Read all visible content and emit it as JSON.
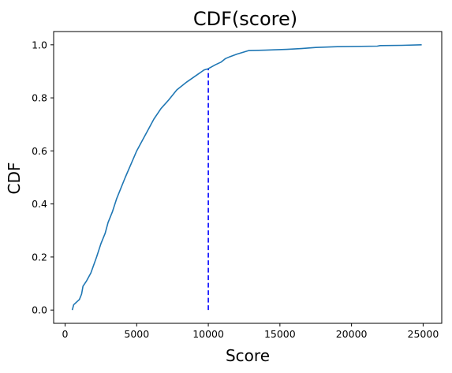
{
  "chart_data": {
    "type": "line",
    "title": "CDF(score)",
    "xlabel": "Score",
    "ylabel": "CDF",
    "xlim": [
      -800,
      26300
    ],
    "ylim": [
      -0.05,
      1.05
    ],
    "xticks": [
      0,
      5000,
      10000,
      15000,
      20000,
      25000
    ],
    "xtick_labels": [
      "0",
      "5000",
      "10000",
      "15000",
      "20000",
      "25000"
    ],
    "yticks": [
      0.0,
      0.2,
      0.4,
      0.6,
      0.8,
      1.0
    ],
    "ytick_labels": [
      "0.0",
      "0.2",
      "0.4",
      "0.6",
      "0.8",
      "1.0"
    ],
    "grid": false,
    "legend": "none",
    "series": [
      {
        "color": "#1f77b4",
        "x": [
          500,
          600,
          1000,
          1150,
          1250,
          1500,
          1800,
          2000,
          2200,
          2500,
          2800,
          3000,
          3300,
          3600,
          3900,
          4200,
          4600,
          5000,
          5400,
          5800,
          6200,
          6700,
          7200,
          7800,
          8500,
          9300,
          9700,
          10000,
          10500,
          10900,
          11200,
          11500,
          12000,
          12800,
          14000,
          15500,
          16500,
          17500,
          19000,
          21800,
          22000,
          23500,
          24900
        ],
        "y": [
          0.0,
          0.02,
          0.04,
          0.06,
          0.09,
          0.11,
          0.14,
          0.17,
          0.2,
          0.25,
          0.29,
          0.33,
          0.37,
          0.42,
          0.46,
          0.5,
          0.55,
          0.6,
          0.64,
          0.68,
          0.72,
          0.76,
          0.79,
          0.83,
          0.86,
          0.89,
          0.905,
          0.91,
          0.925,
          0.935,
          0.948,
          0.955,
          0.965,
          0.978,
          0.98,
          0.983,
          0.986,
          0.99,
          0.993,
          0.995,
          0.997,
          0.998,
          1.0
        ]
      }
    ],
    "annotations": [
      {
        "type": "vline",
        "x": 10000,
        "y0": 0.0,
        "y1": 0.91,
        "color": "#0000ff",
        "style": "dashed"
      }
    ]
  }
}
